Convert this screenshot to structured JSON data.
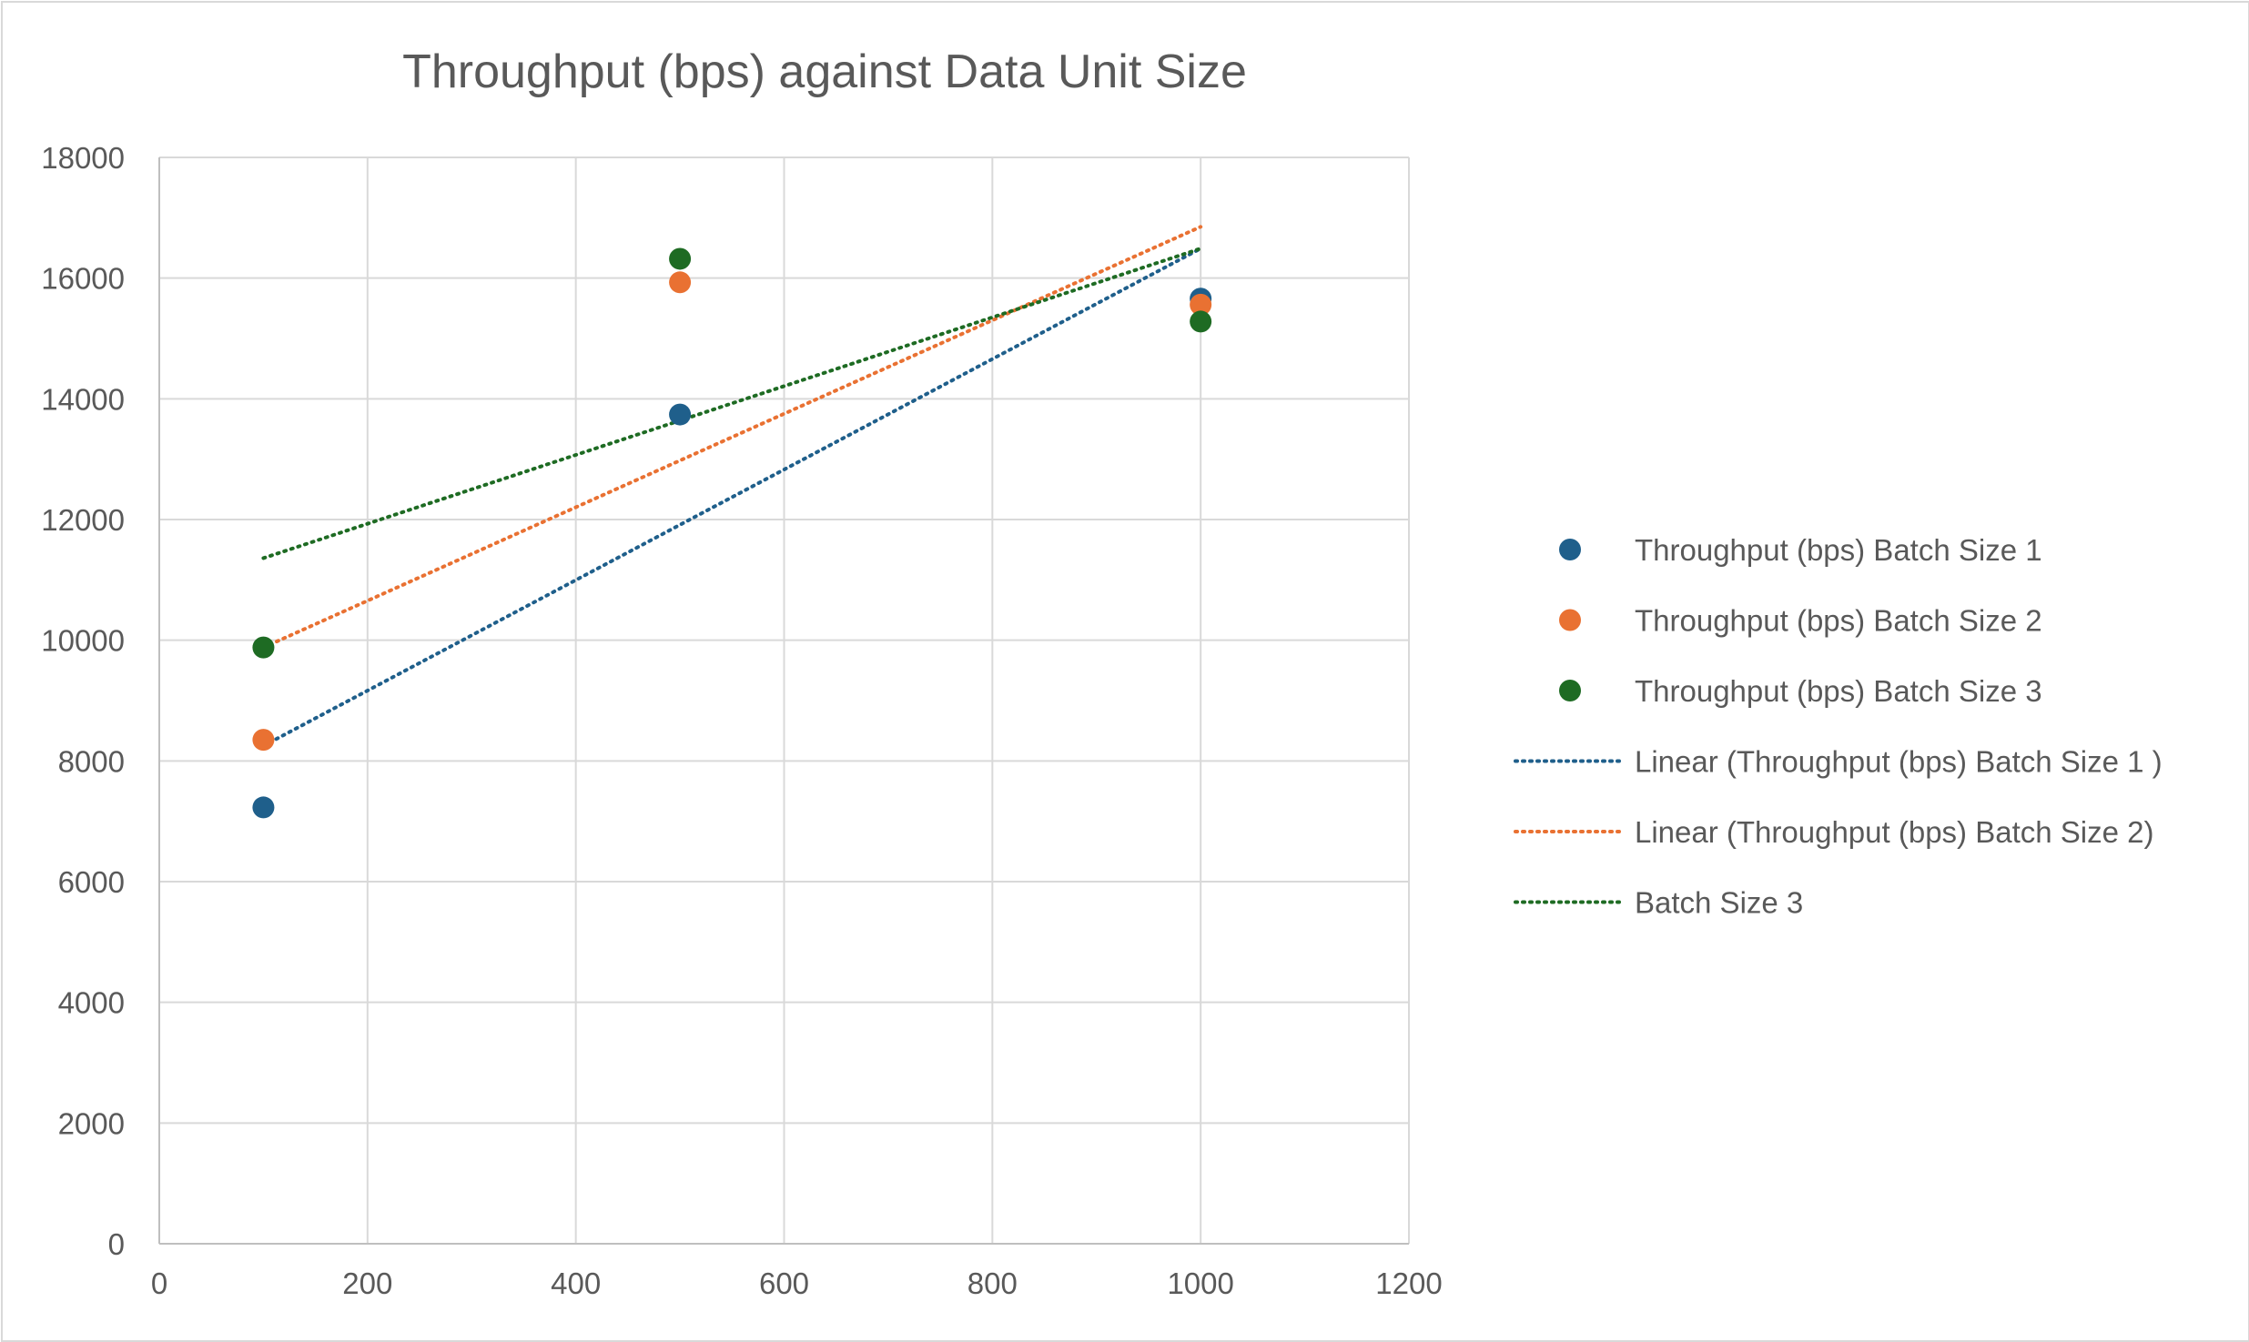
{
  "chart_data": {
    "type": "scatter",
    "title": "Throughput (bps) against Data Unit Size",
    "xlabel": "",
    "ylabel": "",
    "xlim": [
      0,
      1200
    ],
    "ylim": [
      0,
      18000
    ],
    "x_ticks": [
      0,
      200,
      400,
      600,
      800,
      1000,
      1200
    ],
    "y_ticks": [
      0,
      2000,
      4000,
      6000,
      8000,
      10000,
      12000,
      14000,
      16000,
      18000
    ],
    "grid": true,
    "legend_position": "right",
    "series": [
      {
        "name": "Throughput (bps) Batch Size 1",
        "color": "#1f5f8b",
        "marker": "circle",
        "points": [
          {
            "x": 100,
            "y": 7230
          },
          {
            "x": 500,
            "y": 13740
          },
          {
            "x": 1000,
            "y": 15660
          }
        ]
      },
      {
        "name": "Throughput (bps) Batch Size 2",
        "color": "#e97132",
        "marker": "circle",
        "points": [
          {
            "x": 100,
            "y": 8350
          },
          {
            "x": 500,
            "y": 15930
          },
          {
            "x": 1000,
            "y": 15560
          }
        ]
      },
      {
        "name": "Throughput (bps) Batch Size 3",
        "color": "#1e6b23",
        "marker": "circle",
        "points": [
          {
            "x": 100,
            "y": 9880
          },
          {
            "x": 500,
            "y": 16320
          },
          {
            "x": 1000,
            "y": 15280
          }
        ]
      }
    ],
    "trendlines": [
      {
        "name": "Linear (Throughput (bps) Batch Size 1 )",
        "color": "#1f5f8b",
        "style": "dotted",
        "from": {
          "x": 100,
          "y": 8250
        },
        "to": {
          "x": 1000,
          "y": 16490
        }
      },
      {
        "name": "Linear (Throughput (bps) Batch Size 2)",
        "color": "#e97132",
        "style": "dotted",
        "from": {
          "x": 100,
          "y": 9880
        },
        "to": {
          "x": 1000,
          "y": 16850
        }
      },
      {
        "name": "Batch Size 3",
        "color": "#1e6b23",
        "style": "dotted",
        "from": {
          "x": 100,
          "y": 11360
        },
        "to": {
          "x": 1000,
          "y": 16490
        }
      }
    ]
  }
}
